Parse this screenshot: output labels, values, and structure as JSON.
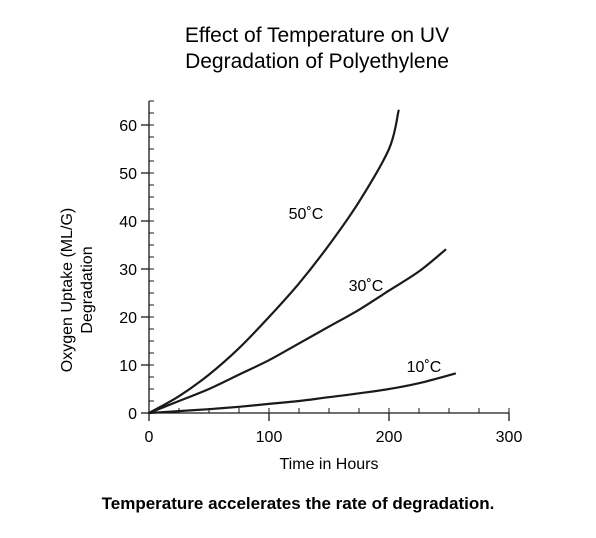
{
  "chart_data": {
    "type": "line",
    "title_lines": [
      "Effect of Temperature on UV",
      "Degradation of Polyethylene"
    ],
    "xlabel": "Time in Hours",
    "ylabel_lines": [
      "Oxygen Uptake (ML/G)",
      "Degradation"
    ],
    "xlim": [
      0,
      300
    ],
    "ylim": [
      0,
      65
    ],
    "x_ticks": [
      0,
      100,
      200,
      300
    ],
    "y_ticks": [
      0,
      10,
      20,
      30,
      40,
      50,
      60
    ],
    "grid": false,
    "series": [
      {
        "name": "50˚C",
        "x": [
          0,
          25,
          50,
          75,
          100,
          125,
          150,
          175,
          200,
          208
        ],
        "y": [
          0,
          3.5,
          8,
          13.5,
          20,
          27,
          35,
          44,
          55,
          63
        ]
      },
      {
        "name": "30˚C",
        "x": [
          0,
          25,
          50,
          75,
          100,
          125,
          150,
          175,
          200,
          225,
          247
        ],
        "y": [
          0,
          2.5,
          5,
          8,
          11,
          14.5,
          18,
          21.5,
          25.5,
          29.5,
          34
        ]
      },
      {
        "name": "10˚C",
        "x": [
          0,
          25,
          50,
          75,
          100,
          125,
          150,
          175,
          200,
          225,
          255
        ],
        "y": [
          0,
          0.4,
          0.8,
          1.3,
          1.9,
          2.5,
          3.3,
          4.1,
          5,
          6.2,
          8.2
        ]
      }
    ]
  },
  "caption": "Temperature accelerates the rate of degradation."
}
